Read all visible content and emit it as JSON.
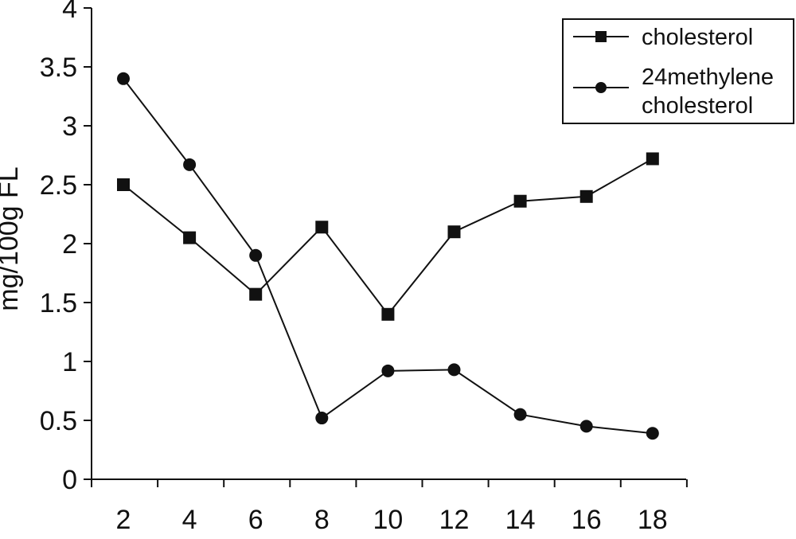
{
  "chart_data": {
    "type": "line",
    "title": "",
    "xlabel": "",
    "ylabel": "mg/100g FL",
    "x": [
      2,
      4,
      6,
      8,
      10,
      12,
      14,
      16,
      18
    ],
    "xticks": [
      "2",
      "4",
      "6",
      "8",
      "10",
      "12",
      "14",
      "16",
      "18"
    ],
    "yticks": [
      "0",
      "0.5",
      "1",
      "1.5",
      "2",
      "2.5",
      "3",
      "3.5",
      "4"
    ],
    "ylim": [
      0,
      4
    ],
    "grid": false,
    "legend_position": "top-right",
    "series": [
      {
        "name": "cholesterol",
        "marker": "square",
        "values": [
          2.5,
          2.05,
          1.57,
          2.14,
          1.4,
          2.1,
          2.36,
          2.4,
          2.72
        ]
      },
      {
        "name": "24methylene cholesterol",
        "name_lines": [
          "24methylene",
          "cholesterol"
        ],
        "marker": "circle",
        "values": [
          3.4,
          2.67,
          1.9,
          0.52,
          0.92,
          0.93,
          0.55,
          0.45,
          0.39
        ]
      }
    ],
    "colors": {
      "line": "#111111",
      "marker": "#111111"
    }
  }
}
